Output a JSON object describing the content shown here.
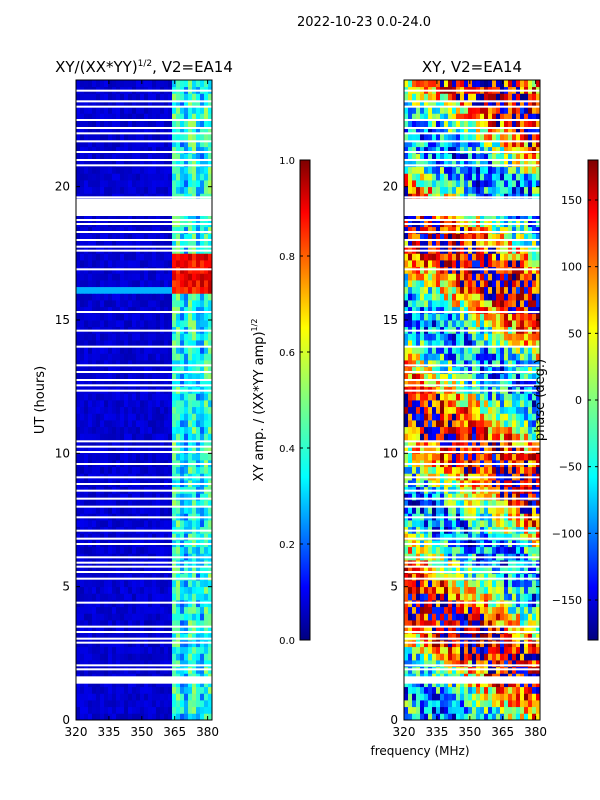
{
  "suptitle": "2022-10-23 0.0-24.0",
  "shared_xlabel": "frequency (MHz)",
  "colors": {
    "jet": [
      "#00007f",
      "#0000ff",
      "#007fff",
      "#00ffff",
      "#7fff7f",
      "#ffff00",
      "#ff7f00",
      "#ff0000",
      "#7f0000"
    ]
  },
  "chart_data": [
    {
      "type": "heatmap",
      "title": "XY/(XX*YY)",
      "title_sup": "1/2",
      "title_suffix": ", V2=EA14",
      "xlabel": "",
      "ylabel": "UT (hours)",
      "xlim": [
        320,
        382
      ],
      "ylim": [
        0,
        24
      ],
      "xticks": [
        320,
        335,
        350,
        365,
        380
      ],
      "yticks": [
        0,
        5,
        10,
        15,
        20
      ],
      "colorbar": {
        "label": "XY amp. / (XX*YY amp)",
        "label_sup": "1/2",
        "range": [
          0.0,
          1.0
        ],
        "ticks": [
          "0.0",
          "0.2",
          "0.4",
          "0.6",
          "0.8",
          "1.0"
        ]
      },
      "description_values": {
        "background_level": 0.05,
        "band_365_382_level": 0.35,
        "hot_period_hours": [
          16,
          17.5
        ],
        "hot_period_level": 0.8
      }
    },
    {
      "type": "heatmap",
      "title": "XY, V2=EA14",
      "xlabel": "frequency (MHz)",
      "ylabel": "",
      "xlim": [
        320,
        382
      ],
      "ylim": [
        0,
        24
      ],
      "xticks": [
        320,
        335,
        350,
        365,
        380
      ],
      "yticks": [
        0,
        5,
        10,
        15,
        20
      ],
      "colorbar": {
        "label": "phase (deg.)",
        "range": [
          -180,
          180
        ],
        "ticks": [
          "150",
          "100",
          "50",
          "0",
          "−50",
          "−100",
          "−150"
        ]
      }
    }
  ],
  "flagged_hours": [
    1.4,
    1.5,
    1.6,
    1.9,
    2.05,
    2.9,
    3.05,
    3.3,
    3.5,
    4.4,
    5.3,
    5.55,
    5.75,
    5.9,
    6.1,
    6.6,
    6.8,
    7.1,
    7.6,
    8.0,
    8.3,
    8.6,
    8.85,
    9.1,
    9.6,
    10.05,
    10.25,
    10.45,
    12.35,
    12.55,
    12.75,
    13.05,
    13.3,
    14.0,
    14.6,
    15.3,
    16.9,
    17.6,
    17.75,
    18.0,
    18.3,
    18.6,
    18.75,
    19.0,
    19.2,
    19.4,
    19.6,
    20.8,
    21.0,
    21.3,
    21.7,
    22.0,
    22.2,
    22.5,
    23.0,
    23.2,
    23.6
  ],
  "flag_blocks_hours": [
    [
      1.4,
      1.6
    ],
    [
      18.9,
      19.55
    ]
  ]
}
